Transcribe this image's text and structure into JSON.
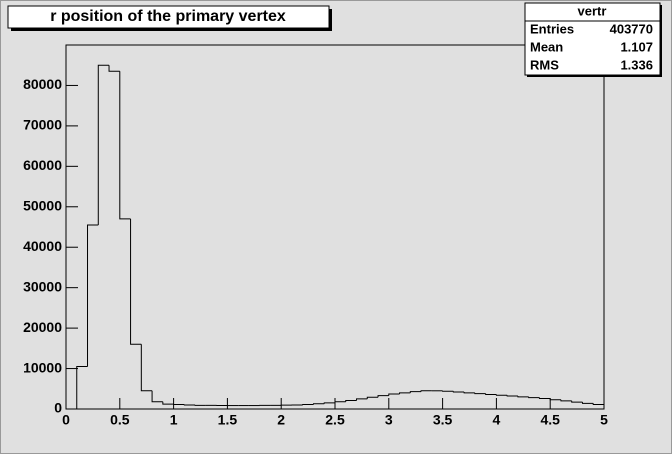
{
  "chart_data": {
    "type": "histogram",
    "title": "r position of the primary vertex",
    "bins": [
      0,
      0.1,
      0.2,
      0.3,
      0.4,
      0.5,
      0.6,
      0.7,
      0.8,
      0.9,
      1,
      1.1,
      1.2,
      1.3,
      1.4,
      1.5,
      1.6,
      1.7,
      1.8,
      1.9,
      2,
      2.1,
      2.2,
      2.3,
      2.4,
      2.5,
      2.6,
      2.7,
      2.8,
      2.9,
      3,
      3.1,
      3.2,
      3.3,
      3.4,
      3.5,
      3.6,
      3.7,
      3.8,
      3.9,
      4,
      4.1,
      4.2,
      4.3,
      4.4,
      4.5,
      4.6,
      4.7,
      4.8,
      4.9,
      5
    ],
    "values": [
      0,
      10500,
      45500,
      85000,
      83500,
      47000,
      16000,
      4500,
      1800,
      1200,
      1100,
      1000,
      900,
      900,
      850,
      850,
      850,
      850,
      900,
      900,
      950,
      1000,
      1100,
      1300,
      1500,
      1800,
      2100,
      2500,
      2900,
      3300,
      3700,
      4000,
      4300,
      4500,
      4500,
      4400,
      4200,
      4000,
      3800,
      3600,
      3400,
      3200,
      3000,
      2800,
      2600,
      2300,
      2000,
      1700,
      1400,
      1100
    ],
    "color": "#000000",
    "xlim": [
      0,
      5
    ],
    "xticks": [
      0,
      0.5,
      1,
      1.5,
      2,
      2.5,
      3,
      3.5,
      4,
      4.5,
      5
    ],
    "ylim": [
      0,
      90000
    ],
    "yticks": [
      0,
      10000,
      20000,
      30000,
      40000,
      50000,
      60000,
      70000,
      80000
    ],
    "stats_title": "vertr",
    "stats_labels": [
      "Entries",
      "Mean",
      "RMS"
    ],
    "stats_values": [
      403770,
      1.107,
      1.336
    ]
  }
}
